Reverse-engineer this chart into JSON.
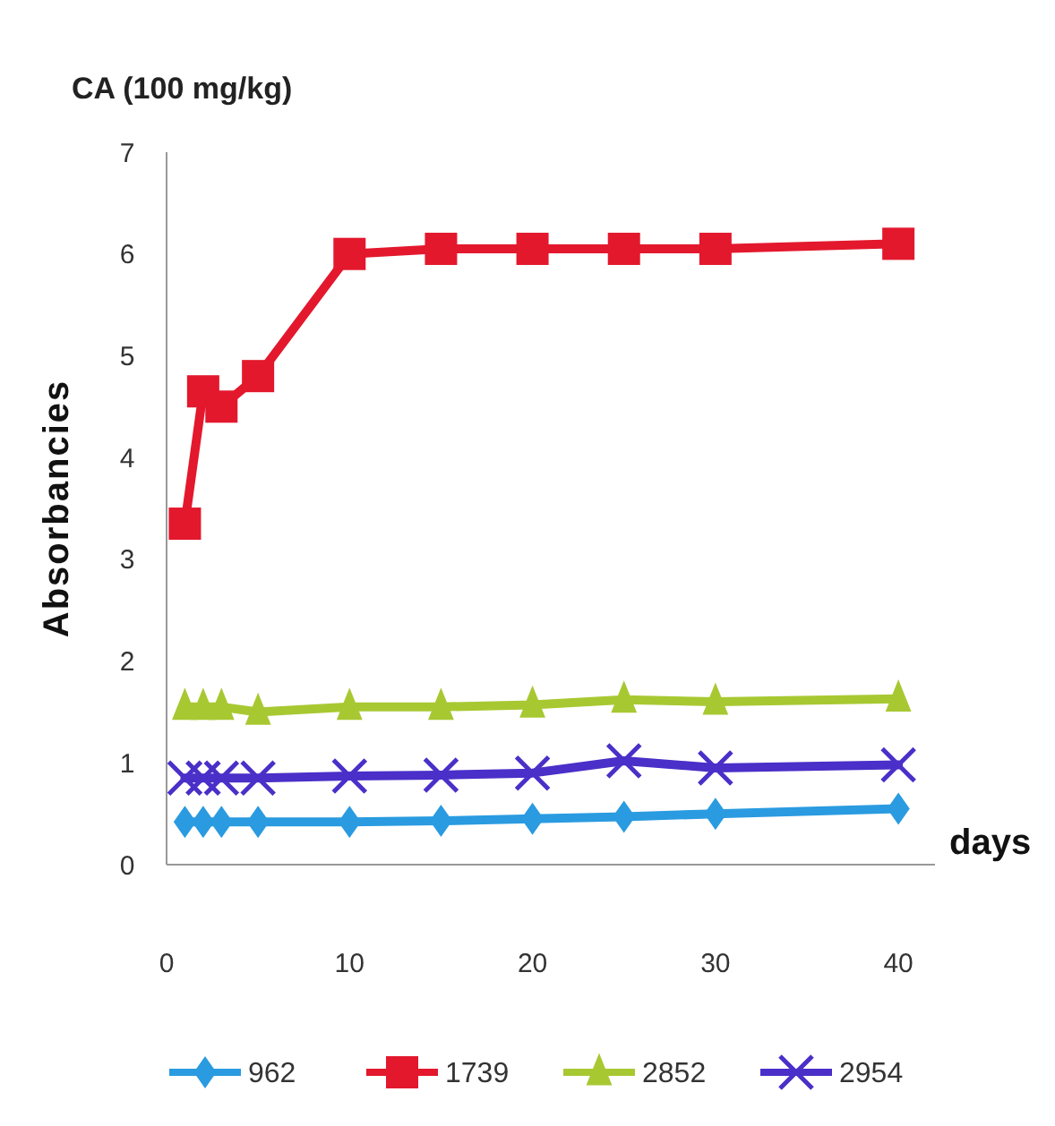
{
  "chart_data": {
    "type": "line",
    "title": "CA (100 mg/kg)",
    "xlabel": "days",
    "ylabel": "Absorbancies",
    "x": [
      1,
      2,
      3,
      5,
      10,
      15,
      20,
      25,
      30,
      40
    ],
    "series": [
      {
        "name": "962",
        "color": "#2a9be0",
        "marker": "diamond",
        "values": [
          0.42,
          0.42,
          0.42,
          0.42,
          0.42,
          0.43,
          0.45,
          0.47,
          0.5,
          0.55
        ]
      },
      {
        "name": "1739",
        "color": "#e3182d",
        "marker": "square",
        "values": [
          3.35,
          4.65,
          4.5,
          4.8,
          6.0,
          6.05,
          6.05,
          6.05,
          6.05,
          6.1
        ]
      },
      {
        "name": "2852",
        "color": "#a8c832",
        "marker": "triangle",
        "values": [
          1.55,
          1.55,
          1.55,
          1.5,
          1.55,
          1.55,
          1.57,
          1.62,
          1.6,
          1.63
        ]
      },
      {
        "name": "2954",
        "color": "#4a2fc8",
        "marker": "cross",
        "values": [
          0.85,
          0.85,
          0.85,
          0.85,
          0.87,
          0.88,
          0.9,
          1.02,
          0.95,
          0.98
        ]
      }
    ],
    "xlim": [
      0,
      42
    ],
    "xticks": [
      0,
      10,
      20,
      30,
      40
    ],
    "ylim": [
      0,
      7
    ],
    "yticks": [
      0,
      1,
      2,
      3,
      4,
      5,
      6,
      7
    ],
    "grid": false,
    "legend": "bottom",
    "line_style": "solid"
  }
}
